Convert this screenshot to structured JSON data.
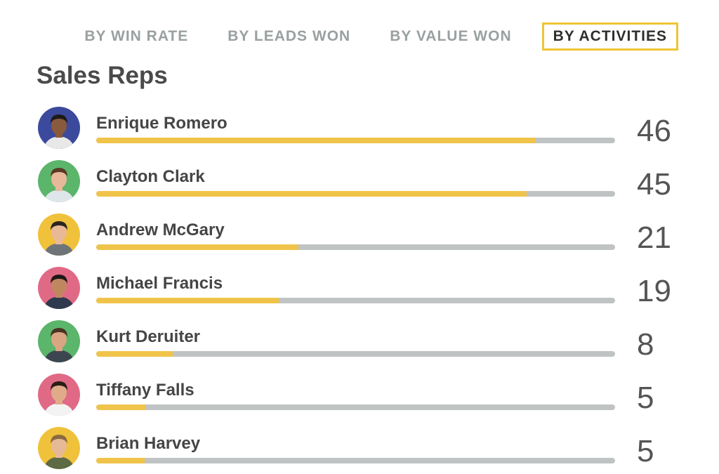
{
  "tabs": [
    {
      "label": "BY WIN RATE",
      "active": false
    },
    {
      "label": "BY LEADS WON",
      "active": false
    },
    {
      "label": "BY VALUE WON",
      "active": false
    },
    {
      "label": "BY ACTIVITIES",
      "active": true
    }
  ],
  "title": "Sales Reps",
  "colors": {
    "accent": "#f0c434",
    "bar_fill": "#f0c44a",
    "bar_track": "#bfc3c3"
  },
  "reps": [
    {
      "name": "Enrique Romero",
      "count": "46",
      "fill": 0.847,
      "avatar_bg": "#3b4a9c",
      "skin": "#8a5a3c",
      "hair": "#1e1a18",
      "shirt": "#e8e8e8"
    },
    {
      "name": "Clayton Clark",
      "count": "45",
      "fill": 0.83,
      "avatar_bg": "#5bb56b",
      "skin": "#e8b89a",
      "hair": "#5a3a24",
      "shirt": "#dfe6ea"
    },
    {
      "name": "Andrew McGary",
      "count": "21",
      "fill": 0.39,
      "avatar_bg": "#f0c13a",
      "skin": "#e9b997",
      "hair": "#2a2522",
      "shirt": "#6f7478"
    },
    {
      "name": "Michael Francis",
      "count": "19",
      "fill": 0.352,
      "avatar_bg": "#e06a86",
      "skin": "#c08660",
      "hair": "#1c1816",
      "shirt": "#2f3a4e"
    },
    {
      "name": "Kurt Deruiter",
      "count": "8",
      "fill": 0.148,
      "avatar_bg": "#5bb56b",
      "skin": "#d9a582",
      "hair": "#4a3324",
      "shirt": "#3d4650"
    },
    {
      "name": "Tiffany Falls",
      "count": "5",
      "fill": 0.095,
      "avatar_bg": "#e06a86",
      "skin": "#e0ab88",
      "hair": "#2a1e18",
      "shirt": "#f3f3f3"
    },
    {
      "name": "Brian Harvey",
      "count": "5",
      "fill": 0.093,
      "avatar_bg": "#f0c13a",
      "skin": "#e6b996",
      "hair": "#8a6a3e",
      "shirt": "#5d6a44"
    }
  ]
}
